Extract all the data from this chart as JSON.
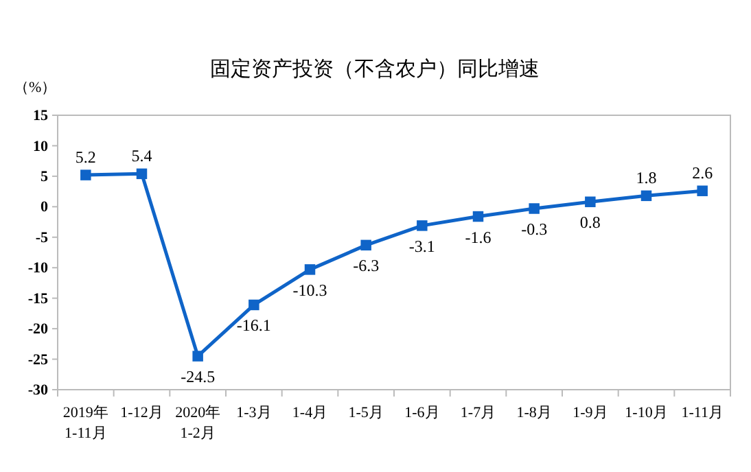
{
  "chart_data": {
    "type": "line",
    "title": "固定资产投资（不含农户）同比增速",
    "ylabel": "（%）",
    "categories": [
      "2019年\n1-11月",
      "1-12月",
      "2020年\n1-2月",
      "1-3月",
      "1-4月",
      "1-5月",
      "1-6月",
      "1-7月",
      "1-8月",
      "1-9月",
      "1-10月",
      "1-11月"
    ],
    "series": [
      {
        "color": "#0f64c8",
        "values": [
          5.2,
          5.4,
          -24.5,
          -16.1,
          -10.3,
          -6.3,
          -3.1,
          -1.6,
          -0.3,
          0.8,
          1.8,
          2.6
        ]
      }
    ],
    "ylim": [
      -30,
      15
    ],
    "yticks": [
      -30,
      -25,
      -20,
      -15,
      -10,
      -5,
      0,
      5,
      10,
      15
    ],
    "marker": "square",
    "line_style": "solid",
    "data_labels": true
  }
}
